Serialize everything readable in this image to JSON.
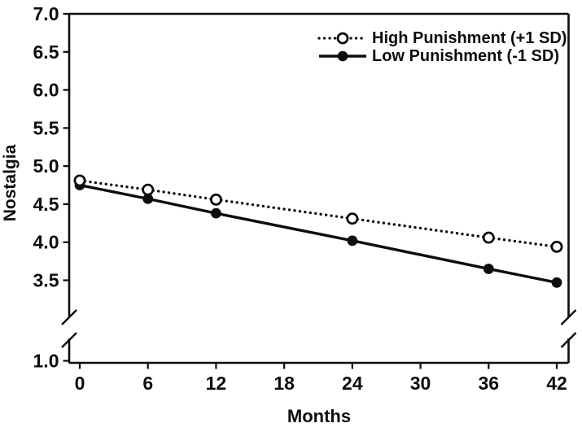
{
  "chart_data": {
    "type": "line",
    "title": "",
    "x_axis": {
      "label": "Months",
      "ticks": [
        "0",
        "6",
        "12",
        "18",
        "24",
        "30",
        "36",
        "42"
      ],
      "range": [
        0,
        42
      ]
    },
    "y_axis": {
      "label": "Nostalgia",
      "upper_ticks": [
        "7.0",
        "6.5",
        "6.0",
        "5.5",
        "5.0",
        "4.5",
        "4.0",
        "3.5"
      ],
      "range_upper": [
        3.5,
        7.0
      ],
      "axis_break": true,
      "bottom_tick": "1.0"
    },
    "x": [
      0,
      6,
      12,
      24,
      36,
      42
    ],
    "series": [
      {
        "name": "High Punishment (+1 SD)",
        "values": [
          4.81,
          4.69,
          4.56,
          4.31,
          4.06,
          3.94
        ],
        "line_style": "dotted",
        "marker": "open-circle",
        "color": "#0d0d0d"
      },
      {
        "name": "Low Punishment (-1 SD)",
        "values": [
          4.75,
          4.57,
          4.38,
          4.02,
          3.65,
          3.47
        ],
        "line_style": "solid",
        "marker": "filled-circle",
        "color": "#0d0d0d"
      }
    ],
    "legend_position": "top-right",
    "grid": false,
    "colors": {
      "foreground": "#0d0d0d",
      "background": "#ffffff"
    }
  }
}
